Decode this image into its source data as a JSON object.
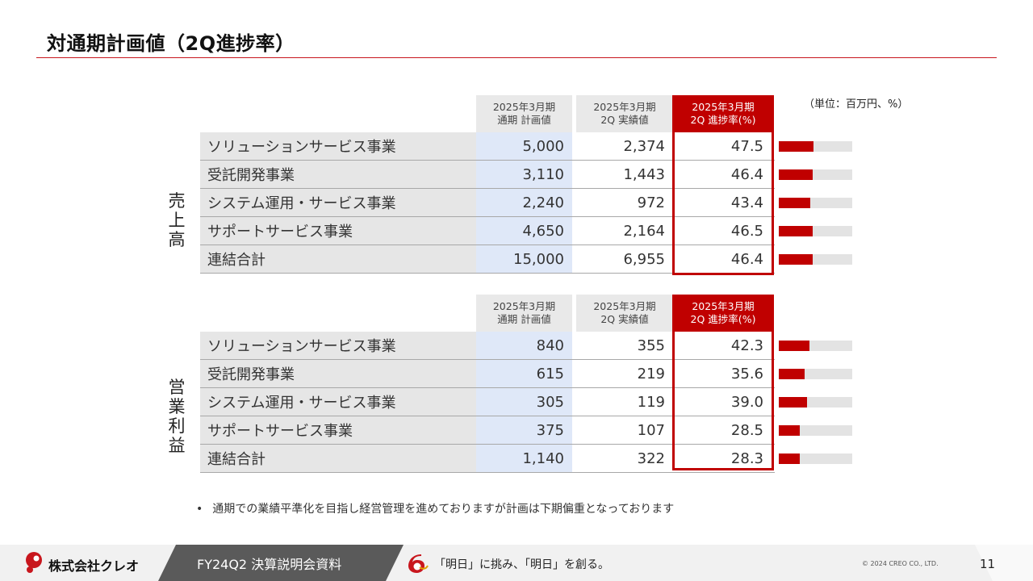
{
  "slide": {
    "title": "対通期計画値（2Q進捗率）",
    "unit": "（単位：百万円、%）",
    "note_bullet": "•",
    "note": "通期での業績平準化を目指し経営管理を進めておりますが計画は下期偏重となっております"
  },
  "headers": {
    "plan": "2025年3月期\n通期 計画値",
    "actual": "2025年3月期\n2Q 実績値",
    "rate": "2025年3月期\n2Q 進捗率(%)"
  },
  "sales": {
    "label": "売上高",
    "rows": [
      {
        "name": "ソリューションサービス事業",
        "plan": "5,000",
        "actual": "2,374",
        "rate": "47.5",
        "rate_value": 47.5
      },
      {
        "name": "受託開発事業",
        "plan": "3,110",
        "actual": "1,443",
        "rate": "46.4",
        "rate_value": 46.4
      },
      {
        "name": "システム運用・サービス事業",
        "plan": "2,240",
        "actual": "972",
        "rate": "43.4",
        "rate_value": 43.4
      },
      {
        "name": "サポートサービス事業",
        "plan": "4,650",
        "actual": "2,164",
        "rate": "46.5",
        "rate_value": 46.5
      },
      {
        "name": "連結合計",
        "plan": "15,000",
        "actual": "6,955",
        "rate": "46.4",
        "rate_value": 46.4
      }
    ]
  },
  "operating_profit": {
    "label": "営業利益",
    "rows": [
      {
        "name": "ソリューションサービス事業",
        "plan": "840",
        "actual": "355",
        "rate": "42.3",
        "rate_value": 42.3
      },
      {
        "name": "受託開発事業",
        "plan": "615",
        "actual": "219",
        "rate": "35.6",
        "rate_value": 35.6
      },
      {
        "name": "システム運用・サービス事業",
        "plan": "305",
        "actual": "119",
        "rate": "39.0",
        "rate_value": 39.0
      },
      {
        "name": "サポートサービス事業",
        "plan": "375",
        "actual": "107",
        "rate": "28.5",
        "rate_value": 28.5
      },
      {
        "name": "連結合計",
        "plan": "1,140",
        "actual": "322",
        "rate": "28.3",
        "rate_value": 28.3
      }
    ]
  },
  "footer": {
    "company": "株式会社クレオ",
    "deck_title": "FY24Q2 決算説明会資料",
    "slogan": "「明日」に挑み、「明日」を創る。",
    "copyright": "© 2024 CREO CO., LTD.",
    "page": "11"
  },
  "colors": {
    "accent": "#c00000",
    "plan_column": "#dfe8f8",
    "footer_band": "#5a5a5a"
  },
  "icons": [
    "creo-logo-icon",
    "anniversary-logo-icon"
  ]
}
